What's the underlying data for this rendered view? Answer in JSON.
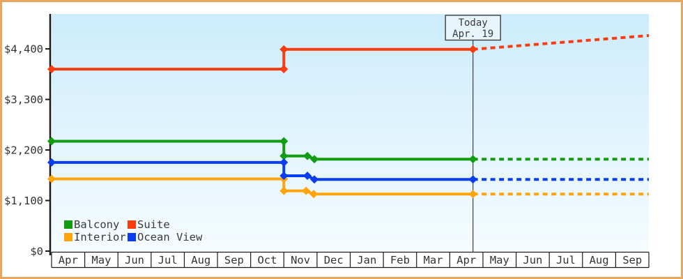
{
  "frame": {
    "border_color": "#e8a55e",
    "outer_background": "#ffffff",
    "plot_bg_top": "#cdecfc",
    "plot_bg_bottom": "#f5fcff",
    "axis_color": "#1a1a1a",
    "text_color": "#333333",
    "today_line_color": "#3c3c3c"
  },
  "chart_data": {
    "type": "line",
    "title": "",
    "xlabel": "",
    "ylabel": "",
    "ylim": [
      0,
      5160
    ],
    "grid": false,
    "months": [
      "Apr",
      "May",
      "Jun",
      "Jul",
      "Aug",
      "Sep",
      "Oct",
      "Nov",
      "Dec",
      "Jan",
      "Feb",
      "Mar",
      "Apr",
      "May",
      "Jun",
      "Jul",
      "Aug",
      "Sep"
    ],
    "y_ticks": [
      {
        "v": 0,
        "label": "$0"
      },
      {
        "v": 1100,
        "label": "$1,100"
      },
      {
        "v": 2200,
        "label": "$2,200"
      },
      {
        "v": 3300,
        "label": "$3,300"
      },
      {
        "v": 4400,
        "label": "$4,400"
      }
    ],
    "today": {
      "line1": "Today",
      "line2": "Apr. 19",
      "m": 12.7
    },
    "series": [
      {
        "name": "Balcony",
        "color": "#129c12",
        "points": [
          [
            0,
            2390
          ],
          [
            7,
            2390
          ],
          [
            7,
            2070
          ],
          [
            7.71,
            2070
          ],
          [
            7.92,
            2000
          ],
          [
            12.7,
            2000
          ]
        ],
        "projection": [
          [
            12.7,
            2000
          ],
          [
            18,
            2000
          ]
        ]
      },
      {
        "name": "Suite",
        "color": "#fa3c0f",
        "points": [
          [
            0,
            3960
          ],
          [
            7,
            3960
          ],
          [
            7,
            4390
          ],
          [
            12.7,
            4390
          ]
        ],
        "projection": [
          [
            12.7,
            4390
          ],
          [
            18,
            4690
          ]
        ]
      },
      {
        "name": "Interior",
        "color": "#ffa40a",
        "points": [
          [
            0,
            1570
          ],
          [
            7,
            1570
          ],
          [
            7,
            1310
          ],
          [
            7.67,
            1310
          ],
          [
            7.9,
            1240
          ],
          [
            12.7,
            1240
          ]
        ],
        "projection": [
          [
            12.7,
            1240
          ],
          [
            18,
            1240
          ]
        ]
      },
      {
        "name": "Ocean View",
        "color": "#0b3df0",
        "points": [
          [
            0,
            1930
          ],
          [
            7,
            1930
          ],
          [
            7,
            1640
          ],
          [
            7.71,
            1640
          ],
          [
            7.92,
            1560
          ],
          [
            12.7,
            1560
          ]
        ],
        "projection": [
          [
            12.7,
            1560
          ],
          [
            18,
            1560
          ]
        ]
      }
    ],
    "legend": {
      "position": "bottom-left-inside",
      "rows": [
        [
          "Balcony",
          "Suite"
        ],
        [
          "Interior",
          "Ocean View"
        ]
      ]
    }
  }
}
